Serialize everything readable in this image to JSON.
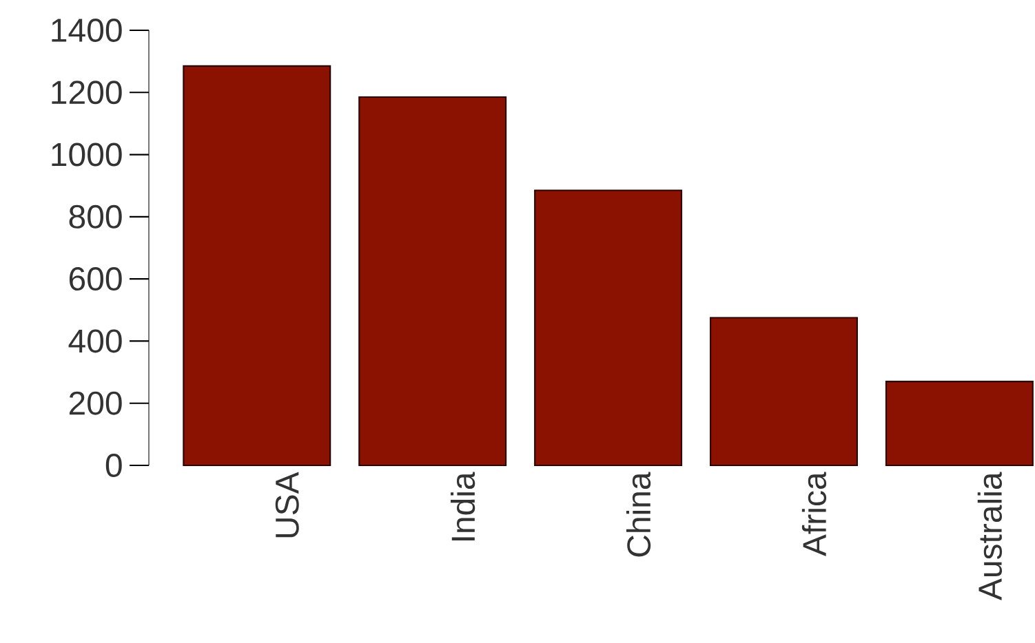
{
  "chart_data": {
    "type": "bar",
    "categories": [
      "USA",
      "India",
      "China",
      "Africa",
      "Australia"
    ],
    "values": [
      1285,
      1185,
      885,
      475,
      270
    ],
    "color": "#8b1100",
    "ylim": [
      0,
      1400
    ],
    "yticks": [
      0,
      200,
      400,
      600,
      800,
      1000,
      1200,
      1400
    ],
    "grid": false
  }
}
